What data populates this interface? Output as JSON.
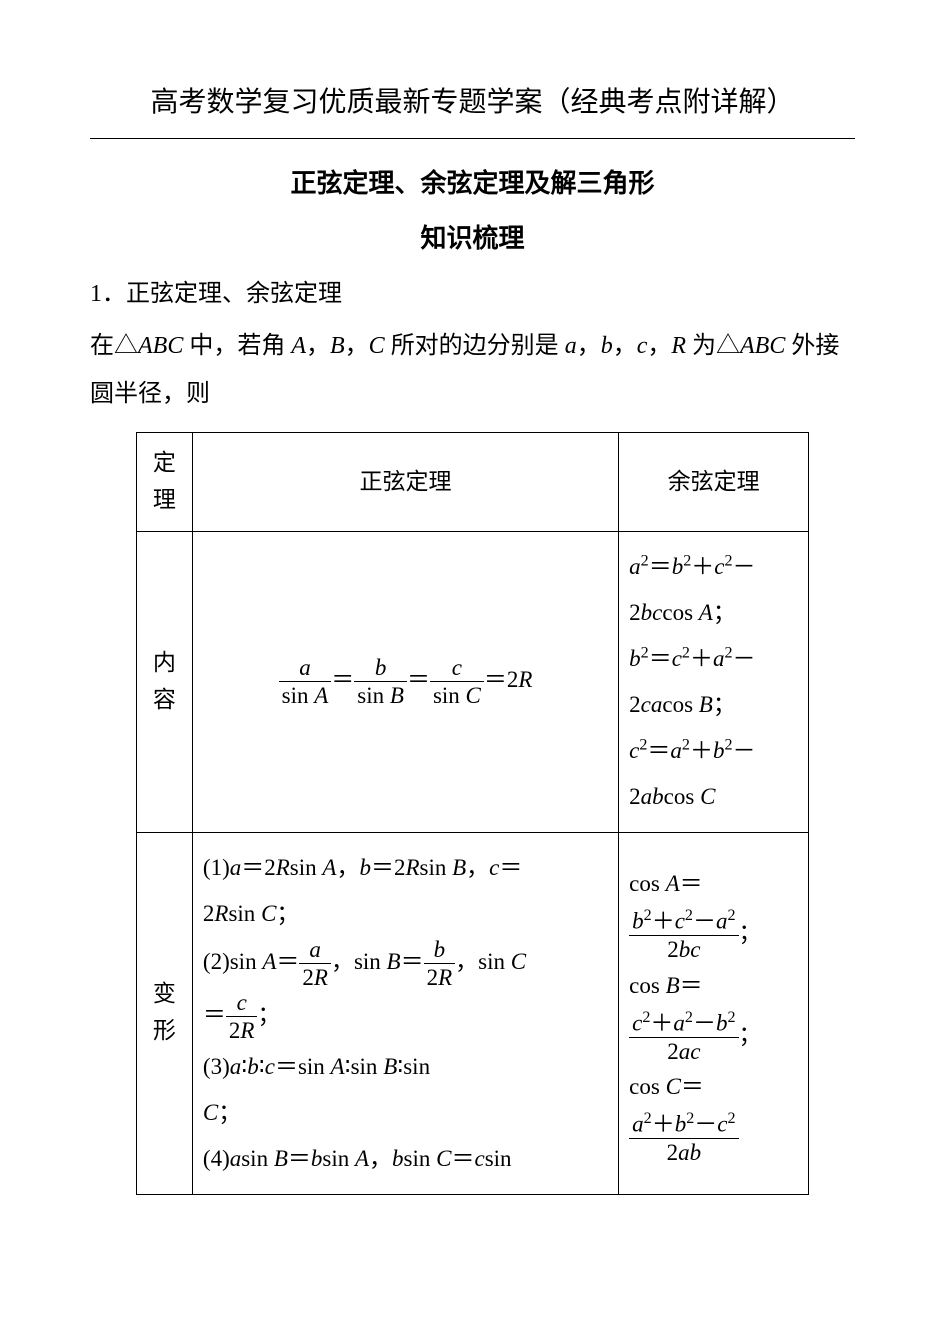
{
  "title": "高考数学复习优质最新专题学案（经典考点附详解）",
  "subtitle": "正弦定理、余弦定理及解三角形",
  "sectionHeading": "知识梳理",
  "heading1": "1．正弦定理、余弦定理",
  "intro_part1": "在△",
  "intro_ABC": "ABC",
  "intro_part2": " 中，若角 ",
  "intro_A": "A",
  "intro_comma1": "，",
  "intro_B": "B",
  "intro_comma2": "，",
  "intro_C": "C",
  "intro_part3": " 所对的边分别是 ",
  "intro_a": "a",
  "intro_comma3": "，",
  "intro_b": "b",
  "intro_comma4": "，",
  "intro_c": "c",
  "intro_comma5": "，",
  "intro_R": "R",
  "intro_part4": " 为△",
  "intro_ABC2": "ABC",
  "intro_part5": " 外接圆半径，则",
  "table": {
    "row0": {
      "label_c1": "定",
      "label_c2": "理",
      "sine": "正弦定理",
      "cosine": "余弦定理"
    },
    "row1": {
      "label_c1": "内",
      "label_c2": "容"
    },
    "row2": {
      "label_c1": "变",
      "label_c2": "形"
    }
  },
  "sine_content": {
    "num_a": "a",
    "den_a1": "sin ",
    "den_a2": "A",
    "eq1": "＝",
    "num_b": "b",
    "den_b1": "sin ",
    "den_b2": "B",
    "eq2": "＝",
    "num_c": "c",
    "den_c1": "sin ",
    "den_c2": "C",
    "eq3": "＝2",
    "R": "R"
  },
  "cosine_content": {
    "l1a": "a",
    "l1b": "＝",
    "l1c": "b",
    "l1d": "＋",
    "l1e": "c",
    "l1f": "－",
    "l2a": "2",
    "l2b": "bc",
    "l2c": "cos ",
    "l2d": "A",
    "l2e": "；",
    "l3a": "b",
    "l3b": "＝",
    "l3c": "c",
    "l3d": "＋",
    "l3e": "a",
    "l3f": "－",
    "l4a": "2",
    "l4b": "ca",
    "l4c": "cos ",
    "l4d": "B",
    "l4e": "；",
    "l5a": "c",
    "l5b": "＝",
    "l5c": "a",
    "l5d": "＋",
    "l5e": "b",
    "l5f": "－",
    "l6a": "2",
    "l6b": "ab",
    "l6c": "cos ",
    "l6d": "C"
  },
  "sine_var": {
    "p1a": "(1)",
    "p1b": "a",
    "p1c": "＝2",
    "p1d": "R",
    "p1e": "sin ",
    "p1f": "A",
    "p1g": "，",
    "p1h": "b",
    "p1i": "＝2",
    "p1j": "R",
    "p1k": "sin ",
    "p1l": "B",
    "p1m": "，",
    "p1n": "c",
    "p1o": "＝",
    "p1p": "2",
    "p1q": "R",
    "p1r": "sin ",
    "p1s": "C",
    "p1t": "；",
    "p2a": "(2)sin ",
    "p2b": "A",
    "p2c": "＝",
    "p2_num1": "a",
    "p2_den1a": "2",
    "p2_den1b": "R",
    "p2d": "，sin ",
    "p2e": "B",
    "p2f": "＝",
    "p2_num2": "b",
    "p2_den2a": "2",
    "p2_den2b": "R",
    "p2g": "，sin ",
    "p2h": "C",
    "p2i": "＝",
    "p2_num3": "c",
    "p2_den3a": "2",
    "p2_den3b": "R",
    "p2j": "；",
    "p3a": "(3)",
    "p3b": "a",
    "p3c": "∶",
    "p3d": "b",
    "p3e": "∶",
    "p3f": "c",
    "p3g": "＝sin ",
    "p3h": "A",
    "p3i": "∶sin ",
    "p3j": "B",
    "p3k": "∶sin",
    "p3l": "C",
    "p3m": "；",
    "p4a": "(4)",
    "p4b": "a",
    "p4c": "sin ",
    "p4d": "B",
    "p4e": "＝",
    "p4f": "b",
    "p4g": "sin ",
    "p4h": "A",
    "p4i": "，",
    "p4j": "b",
    "p4k": "sin ",
    "p4l": "C",
    "p4m": "＝",
    "p4n": "c",
    "p4o": "sin"
  },
  "cosine_var": {
    "l1a": "cos ",
    "l1b": "A",
    "l1c": "＝",
    "f1_num_a": "b",
    "f1_num_b": "＋",
    "f1_num_c": "c",
    "f1_num_d": "－",
    "f1_num_e": "a",
    "f1_den_a": "2",
    "f1_den_b": "bc",
    "l1d": "；",
    "l2a": "cos ",
    "l2b": "B",
    "l2c": "＝",
    "f2_num_a": "c",
    "f2_num_b": "＋",
    "f2_num_c": "a",
    "f2_num_d": "－",
    "f2_num_e": "b",
    "f2_den_a": "2",
    "f2_den_b": "ac",
    "l2d": "；",
    "l3a": "cos ",
    "l3b": "C",
    "l3c": "＝",
    "f3_num_a": "a",
    "f3_num_b": "＋",
    "f3_num_c": "b",
    "f3_num_d": "－",
    "f3_num_e": "c",
    "f3_den_a": "2",
    "f3_den_b": "ab"
  }
}
